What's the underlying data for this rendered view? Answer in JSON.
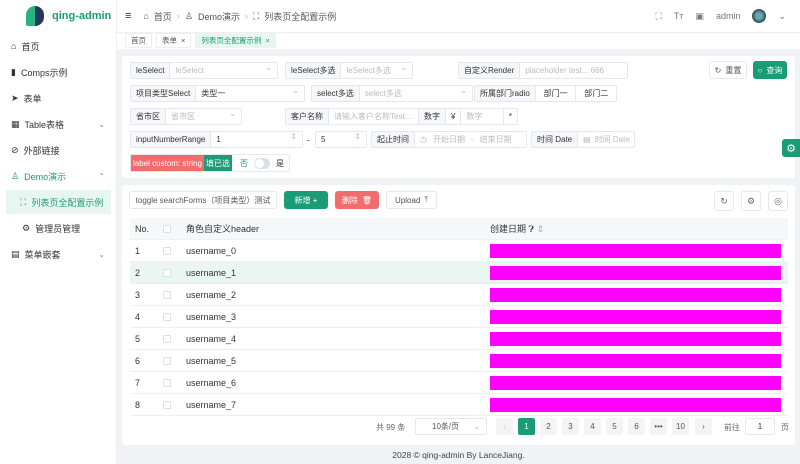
{
  "app": {
    "name": "qing-admin"
  },
  "sidebar": {
    "items": [
      {
        "label": "首页",
        "icon": "home-icon"
      },
      {
        "label": "Comps示例",
        "icon": "book-icon"
      },
      {
        "label": "表单",
        "icon": "send-icon"
      },
      {
        "label": "Table表格",
        "icon": "table-icon"
      },
      {
        "label": "外部链接",
        "icon": "link-icon"
      },
      {
        "label": "Demo演示",
        "icon": "user-icon"
      },
      {
        "label": "列表页全配置示例",
        "icon": "fullscreen-icon"
      },
      {
        "label": "管理员管理",
        "icon": "gear-icon"
      },
      {
        "label": "菜单嵌套",
        "icon": "menu-icon"
      }
    ]
  },
  "header": {
    "breadcrumb": [
      "首页",
      "Demo演示",
      "列表页全配置示例"
    ],
    "user": "admin"
  },
  "tabs": [
    {
      "label": "首页"
    },
    {
      "label": "表单"
    },
    {
      "label": "列表页全配置示例"
    }
  ],
  "search": {
    "leSelect": {
      "label": "leSelect",
      "placeholder": "leSelect"
    },
    "leSelectMulti": {
      "label": "leSelect多选",
      "placeholder": "leSelect多选"
    },
    "customRender": {
      "label": "自定义Render",
      "placeholder": "placeholder test... 666"
    },
    "projectType": {
      "label": "项目类型Select",
      "value": "类型一"
    },
    "selectMulti": {
      "label": "select多选",
      "placeholder": "select多选"
    },
    "dept": {
      "label": "所属部门radio",
      "options": [
        "部门一",
        "部门二"
      ]
    },
    "region": {
      "label": "省市区",
      "placeholder": "省市区"
    },
    "customer": {
      "label": "客户名称",
      "placeholder": "请输入客户名称Test..."
    },
    "number": {
      "label": "数字",
      "prefix": "¥",
      "placeholder": "数字",
      "suffix": "*"
    },
    "numberRange": {
      "label": "inputNumberRange",
      "from": "1",
      "sep": "-",
      "to": "5"
    },
    "dateRange": {
      "label": "起止时间",
      "start": "开始日期",
      "sep": "-",
      "end": "结束日期"
    },
    "date": {
      "label": "时间 Date",
      "placeholder": "时间 Date"
    },
    "customLabel": {
      "label": "label custom: string",
      "tag": "填已选"
    },
    "toggle": {
      "off": "否",
      "on": "是",
      "checked": false
    },
    "reset": "重置",
    "query": "查询"
  },
  "toolbar": {
    "toggle": "toggle searchForms（项目类型）测试",
    "add": "新增 +",
    "delete": "删除",
    "upload": "Upload"
  },
  "table": {
    "headers": [
      "No.",
      "角色自定义header",
      "创建日期"
    ],
    "rows": [
      {
        "no": "1",
        "name": "username_0"
      },
      {
        "no": "2",
        "name": "username_1"
      },
      {
        "no": "3",
        "name": "username_2"
      },
      {
        "no": "4",
        "name": "username_3"
      },
      {
        "no": "5",
        "name": "username_4"
      },
      {
        "no": "6",
        "name": "username_5"
      },
      {
        "no": "7",
        "name": "username_6"
      },
      {
        "no": "8",
        "name": "username_7"
      }
    ],
    "highlight_color": "#ff00ff"
  },
  "pagination": {
    "total": "共 99 条",
    "size": "10条/页",
    "pages": [
      "1",
      "2",
      "3",
      "4",
      "5",
      "6",
      "•••",
      "10"
    ],
    "current": "1",
    "goto": "前往",
    "goto_value": "1",
    "page_unit": "页"
  },
  "footer": "2028 © qing-admin By LanceJiang.",
  "colors": {
    "primary": "#1a9c76",
    "danger": "#f26c6c"
  }
}
